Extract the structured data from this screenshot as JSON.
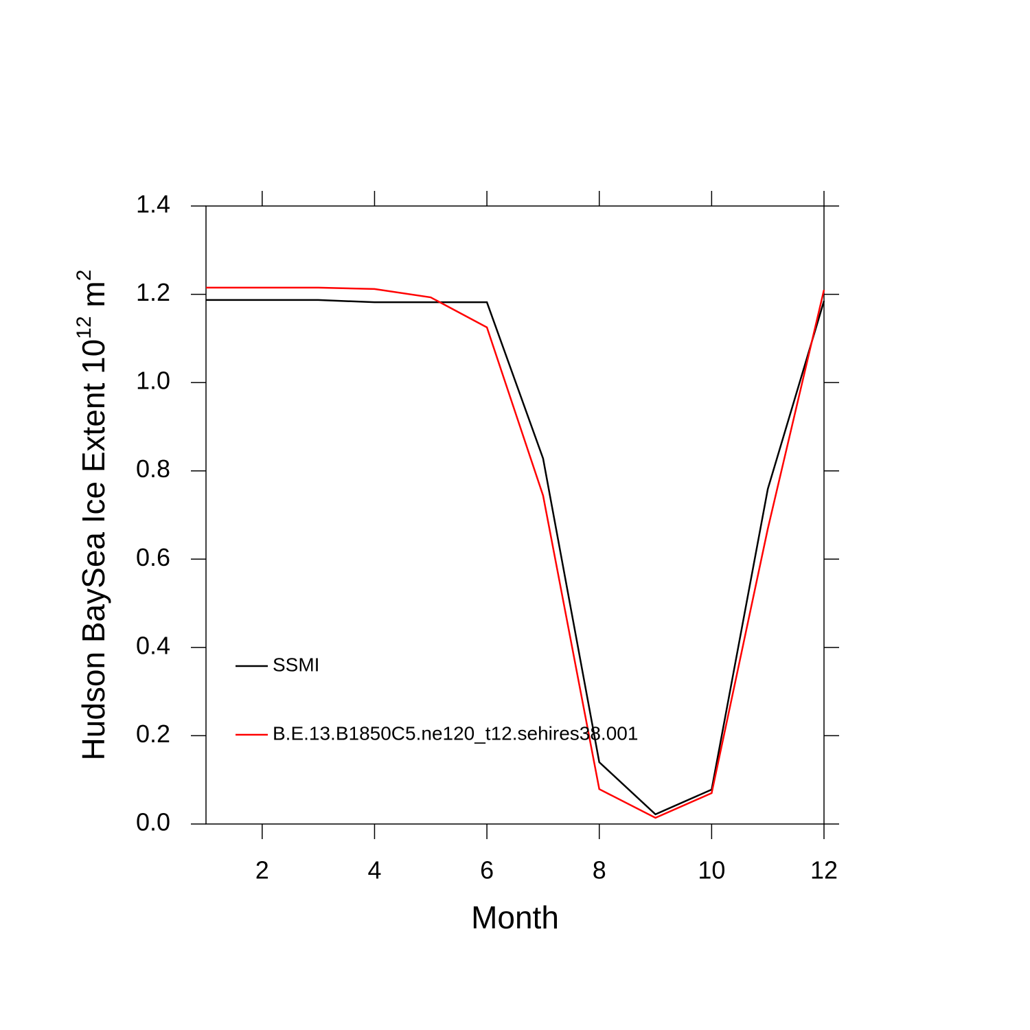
{
  "chart_data": {
    "type": "line",
    "xlabel": "Month",
    "ylabel": [
      "Hudson BaySea Ice Extent 10",
      "12",
      " m",
      "2"
    ],
    "x": [
      1,
      2,
      3,
      4,
      5,
      6,
      7,
      8,
      9,
      10,
      11,
      12
    ],
    "series": [
      {
        "name": "SSMI",
        "color": "#000000",
        "values": [
          1.187,
          1.187,
          1.187,
          1.182,
          1.182,
          1.182,
          0.828,
          0.14,
          0.022,
          0.078,
          0.759,
          1.185
        ]
      },
      {
        "name": "B.E.13.B1850C5.ne120_t12.sehires38.001",
        "color": "#ff0000",
        "values": [
          1.215,
          1.215,
          1.215,
          1.212,
          1.193,
          1.125,
          0.744,
          0.079,
          0.014,
          0.07,
          0.669,
          1.21
        ]
      }
    ],
    "xlim": [
      1,
      12
    ],
    "xticks": [
      2,
      4,
      6,
      8,
      10,
      12
    ],
    "ylim": [
      0,
      1.4
    ],
    "yticks": [
      {
        "value": 0,
        "label": "0.0"
      },
      0.2,
      0.4,
      0.6,
      0.8,
      {
        "value": 1,
        "label": "1.0"
      },
      1.2,
      1.4
    ],
    "legend": "lower left",
    "grid": false
  }
}
